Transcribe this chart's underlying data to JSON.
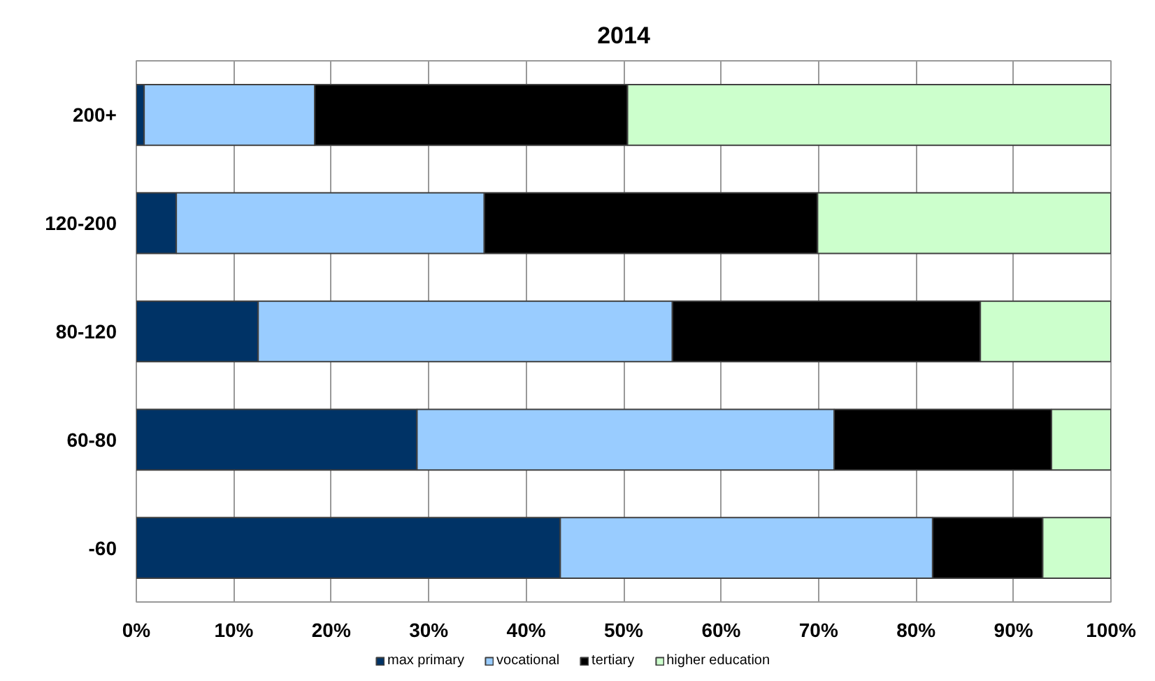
{
  "chart_data": {
    "type": "bar",
    "orientation": "horizontal",
    "stacked": true,
    "title": "2014",
    "categories": [
      "200+",
      "120-200",
      "80-120",
      "60-80",
      "-60"
    ],
    "series": [
      {
        "name": "max primary",
        "color": "#003366",
        "values": [
          0.8,
          4.1,
          12.5,
          28.8,
          43.5
        ]
      },
      {
        "name": "vocational",
        "color": "#99ccff",
        "values": [
          17.5,
          31.6,
          42.5,
          42.8,
          38.2
        ]
      },
      {
        "name": "tertiary",
        "color": "#000000",
        "values": [
          32.1,
          34.2,
          31.6,
          22.3,
          11.3
        ]
      },
      {
        "name": "higher education",
        "color": "#ccffcc",
        "values": [
          49.6,
          30.1,
          13.4,
          6.1,
          7.0
        ]
      }
    ],
    "xlim": [
      0,
      100
    ],
    "xticks": [
      {
        "value": 0,
        "label": "0%"
      },
      {
        "value": 10,
        "label": "10%"
      },
      {
        "value": 20,
        "label": "20%"
      },
      {
        "value": 30,
        "label": "30%"
      },
      {
        "value": 40,
        "label": "40%"
      },
      {
        "value": 50,
        "label": "50%"
      },
      {
        "value": 60,
        "label": "60%"
      },
      {
        "value": 70,
        "label": "70%"
      },
      {
        "value": 80,
        "label": "80%"
      },
      {
        "value": 90,
        "label": "90%"
      },
      {
        "value": 100,
        "label": "100%"
      }
    ],
    "grid": "x",
    "legend": "bottom"
  }
}
